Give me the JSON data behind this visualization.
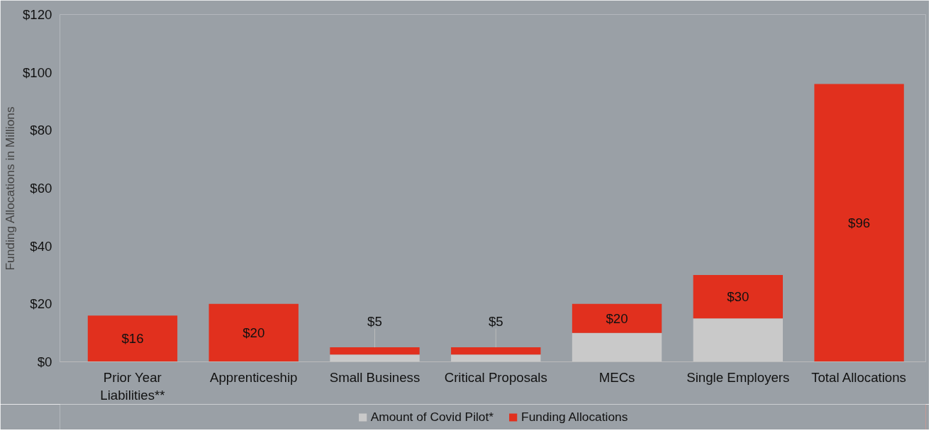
{
  "chart_data": {
    "type": "bar",
    "stacked": true,
    "ylabel": "Funding Allocations in Millions",
    "categories": [
      "Prior Year\nLiabilities**",
      "Apprenticeship",
      "Small Business",
      "Critical Proposals",
      "MECs",
      "Single Employers",
      "Total Allocations"
    ],
    "series": [
      {
        "name": "Amount of Covid Pilot*",
        "color": "#c9c9c9",
        "values": [
          0,
          0,
          2.5,
          2.5,
          10,
          15,
          0
        ]
      },
      {
        "name": "Funding Allocations",
        "color": "#e1301e",
        "values": [
          16,
          20,
          2.5,
          2.5,
          10,
          15,
          96
        ]
      }
    ],
    "totals": [
      "$16",
      "$20",
      "$5",
      "$5",
      "$20",
      "$30",
      "$96"
    ],
    "ylim": [
      0,
      120
    ],
    "yticks": [
      {
        "value": 0,
        "label": "$0"
      },
      {
        "value": 20,
        "label": "$20"
      },
      {
        "value": 40,
        "label": "$40"
      },
      {
        "value": 60,
        "label": "$60"
      },
      {
        "value": 80,
        "label": "$80"
      },
      {
        "value": 100,
        "label": "$100"
      },
      {
        "value": 120,
        "label": "$120"
      }
    ],
    "grid": false,
    "legend": "bottom"
  }
}
